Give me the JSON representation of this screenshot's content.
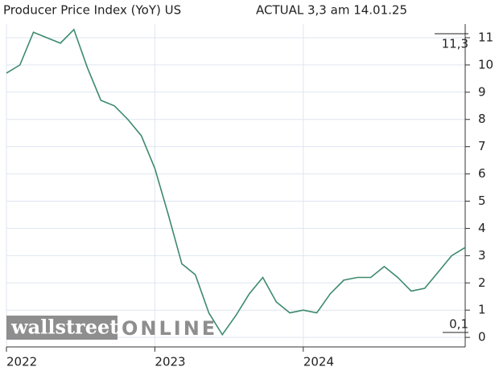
{
  "chart_data": {
    "type": "line",
    "title": "Producer Price Index (YoY) US",
    "subtitle": "ACTUAL 3,3 am 14.01.25",
    "watermark": [
      "wallstreet",
      "ONLINE"
    ],
    "max_label": "11,3",
    "min_label": "0,1",
    "categories": [
      "2022",
      null,
      null,
      null,
      null,
      null,
      null,
      null,
      null,
      null,
      null,
      "2023",
      null,
      null,
      null,
      null,
      null,
      null,
      null,
      null,
      null,
      null,
      "2024",
      null,
      null,
      null,
      null,
      null,
      null,
      null,
      null,
      null,
      null,
      null,
      null
    ],
    "series": [
      {
        "name": "Producer Price Index (YoY) US",
        "color": "#3d8a6c",
        "values": [
          9.7,
          10.0,
          11.2,
          11.0,
          10.8,
          11.3,
          9.9,
          8.7,
          8.5,
          8.0,
          7.4,
          6.2,
          4.5,
          2.7,
          2.3,
          0.9,
          0.1,
          0.8,
          1.6,
          2.2,
          1.3,
          0.9,
          1.0,
          0.9,
          1.6,
          2.1,
          2.2,
          2.2,
          2.6,
          2.2,
          1.7,
          1.8,
          2.4,
          3.0,
          3.3
        ]
      }
    ],
    "ylim": [
      -0.35,
      11.5
    ],
    "yticks": [
      0,
      1,
      2,
      3,
      4,
      5,
      6,
      7,
      8,
      9,
      10,
      11
    ],
    "grid": true
  }
}
